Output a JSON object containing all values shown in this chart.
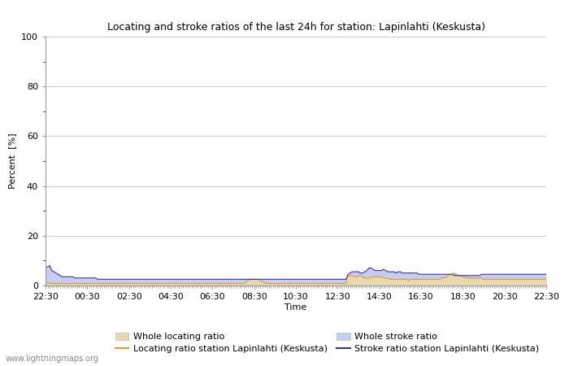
{
  "title": "Locating and stroke ratios of the last 24h for station: Lapinlahti (Keskusta)",
  "ylabel": "Percent  [%]",
  "xlabel": "Time",
  "ylim": [
    0,
    100
  ],
  "yticks": [
    0,
    20,
    40,
    60,
    80,
    100
  ],
  "ytick_minors": [
    10,
    30,
    50,
    70,
    90
  ],
  "x_labels": [
    "22:30",
    "00:30",
    "02:30",
    "04:30",
    "06:30",
    "08:30",
    "10:30",
    "12:30",
    "14:30",
    "16:30",
    "18:30",
    "20:30",
    "22:30"
  ],
  "watermark": "www.lightningmaps.org",
  "bg_color": "#ffffff",
  "plot_bg_color": "#ffffff",
  "grid_color": "#cccccc",
  "whole_locating_color": "#e8d8b0",
  "whole_stroke_color": "#c8ccee",
  "locating_line_color": "#d4a030",
  "stroke_line_color": "#3030b0",
  "whole_locating_data": [
    1.0,
    1.0,
    1.0,
    0.8,
    0.8,
    0.8,
    0.8,
    0.8,
    0.8,
    0.8,
    0.8,
    0.8,
    0.8,
    0.8,
    0.8,
    0.8,
    0.8,
    0.8,
    0.8,
    0.8,
    0.8,
    0.8,
    0.8,
    0.8,
    0.8,
    0.8,
    0.8,
    0.8,
    0.8,
    0.8,
    0.8,
    0.8,
    0.8,
    0.8,
    0.8,
    0.8,
    0.8,
    0.8,
    0.8,
    0.8,
    0.8,
    0.8,
    0.8,
    0.8,
    0.8,
    0.8,
    0.8,
    0.8,
    0.8,
    0.8,
    0.8,
    0.8,
    0.8,
    0.8,
    0.8,
    0.8,
    0.8,
    0.8,
    0.8,
    0.8,
    0.8,
    0.8,
    0.8,
    0.8,
    0.8,
    0.8,
    0.8,
    0.8,
    0.8,
    0.8,
    0.8,
    0.8,
    0.8,
    0.8,
    0.8,
    0.8,
    0.8,
    0.8,
    0.8,
    0.8,
    0.8,
    0.8,
    0.8,
    0.8,
    0.8,
    0.8,
    0.8,
    0.8,
    0.8,
    0.8,
    0.8,
    0.8,
    0.8,
    0.8,
    0.8,
    1.0,
    1.5,
    2.0,
    2.5,
    2.5,
    2.5,
    2.5,
    2.5,
    2.0,
    1.5,
    1.0,
    0.8,
    0.8,
    0.8,
    0.8,
    0.8,
    0.8,
    0.8,
    0.8,
    0.8,
    0.8,
    0.8,
    0.8,
    0.8,
    0.8,
    0.8,
    0.8,
    0.8,
    0.8,
    0.8,
    0.8,
    0.8,
    0.8,
    0.8,
    0.8,
    0.8,
    0.8,
    0.8,
    0.8,
    0.8,
    0.8,
    0.8,
    0.8,
    0.8,
    0.8,
    0.8,
    0.8,
    0.8,
    0.8,
    0.8,
    4.0,
    4.0,
    4.0,
    3.5,
    3.5,
    4.0,
    4.0,
    3.5,
    3.0,
    3.0,
    3.0,
    3.5,
    3.5,
    3.5,
    3.5,
    3.5,
    3.5,
    3.0,
    3.0,
    3.0,
    2.5,
    2.5,
    2.5,
    2.5,
    2.5,
    2.5,
    2.5,
    2.5,
    2.5,
    2.0,
    2.5,
    2.5,
    2.5,
    2.5,
    2.5,
    2.5,
    2.5,
    2.5,
    2.5,
    2.5,
    2.5,
    2.5,
    2.5,
    2.5,
    2.5,
    3.0,
    3.0,
    3.5,
    4.0,
    4.5,
    4.5,
    5.0,
    4.5,
    4.0,
    4.0,
    3.5,
    3.5,
    3.0,
    3.0,
    3.0,
    3.0,
    3.0,
    3.0,
    3.0,
    3.0,
    2.5,
    2.5,
    2.5,
    2.5,
    2.5,
    2.5,
    2.5,
    2.5,
    2.5,
    2.5,
    2.5,
    2.5,
    2.5,
    2.5,
    2.5,
    2.5,
    2.5,
    2.5,
    2.5,
    2.5,
    2.5,
    2.5,
    2.5,
    2.5,
    2.5,
    2.5,
    2.5,
    2.5,
    2.5,
    2.5,
    2.5
  ],
  "whole_stroke_data": [
    7.0,
    7.5,
    8.0,
    6.0,
    5.5,
    5.0,
    4.5,
    4.0,
    3.5,
    3.5,
    3.5,
    3.5,
    3.5,
    3.5,
    3.0,
    3.0,
    3.0,
    3.0,
    3.0,
    3.0,
    3.0,
    3.0,
    3.0,
    3.0,
    3.0,
    2.5,
    2.5,
    2.5,
    2.5,
    2.5,
    2.5,
    2.5,
    2.5,
    2.5,
    2.5,
    2.5,
    2.5,
    2.5,
    2.5,
    2.5,
    2.5,
    2.5,
    2.5,
    2.5,
    2.5,
    2.5,
    2.5,
    2.5,
    2.5,
    2.5,
    2.5,
    2.5,
    2.5,
    2.5,
    2.5,
    2.5,
    2.5,
    2.5,
    2.5,
    2.5,
    2.5,
    2.5,
    2.5,
    2.5,
    2.5,
    2.5,
    2.5,
    2.5,
    2.5,
    2.5,
    2.5,
    2.5,
    2.5,
    2.5,
    2.5,
    2.5,
    2.5,
    2.5,
    2.5,
    2.5,
    2.5,
    2.5,
    2.5,
    2.5,
    2.5,
    2.5,
    2.5,
    2.5,
    2.5,
    2.5,
    2.5,
    2.5,
    2.5,
    2.5,
    2.5,
    2.5,
    2.5,
    2.5,
    2.5,
    2.5,
    2.5,
    2.5,
    2.5,
    2.5,
    2.5,
    2.5,
    2.5,
    2.5,
    2.5,
    2.5,
    2.5,
    2.5,
    2.5,
    2.5,
    2.5,
    2.5,
    2.5,
    2.5,
    2.5,
    2.5,
    2.5,
    2.5,
    2.5,
    2.5,
    2.5,
    2.5,
    2.5,
    2.5,
    2.5,
    2.5,
    2.5,
    2.5,
    2.5,
    2.5,
    2.5,
    2.5,
    2.5,
    2.5,
    2.5,
    2.5,
    2.5,
    2.5,
    2.5,
    2.5,
    2.5,
    4.5,
    5.0,
    5.5,
    5.5,
    5.5,
    5.5,
    5.0,
    5.0,
    5.5,
    6.0,
    7.0,
    7.0,
    6.5,
    6.0,
    6.0,
    6.0,
    6.0,
    6.5,
    6.0,
    5.5,
    5.5,
    5.5,
    5.5,
    5.0,
    5.5,
    5.5,
    5.0,
    5.0,
    5.0,
    5.0,
    5.0,
    5.0,
    5.0,
    5.0,
    4.5,
    4.5,
    4.5,
    4.5,
    4.5,
    4.5,
    4.5,
    4.5,
    4.5,
    4.5,
    4.5,
    4.5,
    4.5,
    4.5,
    4.5,
    4.5,
    4.5,
    4.0,
    4.0,
    4.0,
    4.0,
    4.0,
    4.0,
    4.0,
    4.0,
    4.0,
    4.0,
    4.0,
    4.0,
    4.0,
    4.5,
    4.5,
    4.5,
    4.5,
    4.5,
    4.5,
    4.5,
    4.5,
    4.5,
    4.5,
    4.5,
    4.5,
    4.5,
    4.5,
    4.5,
    4.5,
    4.5,
    4.5,
    4.5,
    4.5,
    4.5,
    4.5,
    4.5,
    4.5,
    4.5,
    4.5,
    4.5,
    4.5,
    4.5,
    4.5,
    4.5,
    4.5
  ],
  "locating_line_data": [
    1.0,
    1.0,
    1.0,
    0.8,
    0.8,
    0.8,
    0.8,
    0.8,
    0.8,
    0.8,
    0.8,
    0.8,
    0.8,
    0.8,
    0.8,
    0.8,
    0.8,
    0.8,
    0.8,
    0.8,
    0.8,
    0.8,
    0.8,
    0.8,
    0.8,
    0.8,
    0.8,
    0.8,
    0.8,
    0.8,
    0.8,
    0.8,
    0.8,
    0.8,
    0.8,
    0.8,
    0.8,
    0.8,
    0.8,
    0.8,
    0.8,
    0.8,
    0.8,
    0.8,
    0.8,
    0.8,
    0.8,
    0.8,
    0.8,
    0.8,
    0.8,
    0.8,
    0.8,
    0.8,
    0.8,
    0.8,
    0.8,
    0.8,
    0.8,
    0.8,
    0.8,
    0.8,
    0.8,
    0.8,
    0.8,
    0.8,
    0.8,
    0.8,
    0.8,
    0.8,
    0.8,
    0.8,
    0.8,
    0.8,
    0.8,
    0.8,
    0.8,
    0.8,
    0.8,
    0.8,
    0.8,
    0.8,
    0.8,
    0.8,
    0.8,
    0.8,
    0.8,
    0.8,
    0.8,
    0.8,
    0.8,
    0.8,
    0.8,
    0.8,
    0.8,
    1.0,
    1.5,
    2.0,
    2.5,
    2.5,
    2.5,
    2.5,
    2.5,
    2.0,
    1.5,
    1.0,
    0.8,
    0.8,
    0.8,
    0.8,
    0.8,
    0.8,
    0.8,
    0.8,
    0.8,
    0.8,
    0.8,
    0.8,
    0.8,
    0.8,
    0.8,
    0.8,
    0.8,
    0.8,
    0.8,
    0.8,
    0.8,
    0.8,
    0.8,
    0.8,
    0.8,
    0.8,
    0.8,
    0.8,
    0.8,
    0.8,
    0.8,
    0.8,
    0.8,
    0.8,
    0.8,
    0.8,
    0.8,
    0.8,
    0.8,
    4.0,
    4.0,
    4.0,
    3.5,
    3.5,
    4.0,
    4.0,
    3.5,
    3.0,
    3.0,
    3.0,
    3.5,
    3.5,
    3.5,
    3.5,
    3.5,
    3.5,
    3.0,
    3.0,
    3.0,
    2.5,
    2.5,
    2.5,
    2.5,
    2.5,
    2.5,
    2.5,
    2.5,
    2.5,
    2.0,
    2.5,
    2.5,
    2.5,
    2.5,
    2.5,
    2.5,
    2.5,
    2.5,
    2.5,
    2.5,
    2.5,
    2.5,
    2.5,
    2.5,
    2.5,
    3.0,
    3.0,
    3.5,
    4.0,
    4.5,
    4.5,
    5.0,
    4.5,
    4.0,
    4.0,
    3.5,
    3.5,
    3.0,
    3.0,
    3.0,
    3.0,
    3.0,
    3.0,
    3.0,
    3.0,
    2.5,
    2.5,
    2.5,
    2.5,
    2.5,
    2.5,
    2.5,
    2.5,
    2.5,
    2.5,
    2.5,
    2.5,
    2.5,
    2.5,
    2.5,
    2.5,
    2.5,
    2.5,
    2.5,
    2.5,
    2.5,
    2.5,
    2.5,
    2.5,
    2.5,
    2.5,
    2.5,
    2.5,
    2.5,
    2.5,
    2.5
  ],
  "stroke_line_data": [
    7.0,
    7.5,
    8.0,
    6.0,
    5.5,
    5.0,
    4.5,
    4.0,
    3.5,
    3.5,
    3.5,
    3.5,
    3.5,
    3.5,
    3.0,
    3.0,
    3.0,
    3.0,
    3.0,
    3.0,
    3.0,
    3.0,
    3.0,
    3.0,
    3.0,
    2.5,
    2.5,
    2.5,
    2.5,
    2.5,
    2.5,
    2.5,
    2.5,
    2.5,
    2.5,
    2.5,
    2.5,
    2.5,
    2.5,
    2.5,
    2.5,
    2.5,
    2.5,
    2.5,
    2.5,
    2.5,
    2.5,
    2.5,
    2.5,
    2.5,
    2.5,
    2.5,
    2.5,
    2.5,
    2.5,
    2.5,
    2.5,
    2.5,
    2.5,
    2.5,
    2.5,
    2.5,
    2.5,
    2.5,
    2.5,
    2.5,
    2.5,
    2.5,
    2.5,
    2.5,
    2.5,
    2.5,
    2.5,
    2.5,
    2.5,
    2.5,
    2.5,
    2.5,
    2.5,
    2.5,
    2.5,
    2.5,
    2.5,
    2.5,
    2.5,
    2.5,
    2.5,
    2.5,
    2.5,
    2.5,
    2.5,
    2.5,
    2.5,
    2.5,
    2.5,
    2.5,
    2.5,
    2.5,
    2.5,
    2.5,
    2.5,
    2.5,
    2.5,
    2.5,
    2.5,
    2.5,
    2.5,
    2.5,
    2.5,
    2.5,
    2.5,
    2.5,
    2.5,
    2.5,
    2.5,
    2.5,
    2.5,
    2.5,
    2.5,
    2.5,
    2.5,
    2.5,
    2.5,
    2.5,
    2.5,
    2.5,
    2.5,
    2.5,
    2.5,
    2.5,
    2.5,
    2.5,
    2.5,
    2.5,
    2.5,
    2.5,
    2.5,
    2.5,
    2.5,
    2.5,
    2.5,
    2.5,
    2.5,
    2.5,
    2.5,
    4.5,
    5.0,
    5.5,
    5.5,
    5.5,
    5.5,
    5.0,
    5.0,
    5.5,
    6.0,
    7.0,
    7.0,
    6.5,
    6.0,
    6.0,
    6.0,
    6.0,
    6.5,
    6.0,
    5.5,
    5.5,
    5.5,
    5.5,
    5.0,
    5.5,
    5.5,
    5.0,
    5.0,
    5.0,
    5.0,
    5.0,
    5.0,
    5.0,
    5.0,
    4.5,
    4.5,
    4.5,
    4.5,
    4.5,
    4.5,
    4.5,
    4.5,
    4.5,
    4.5,
    4.5,
    4.5,
    4.5,
    4.5,
    4.5,
    4.5,
    4.5,
    4.0,
    4.0,
    4.0,
    4.0,
    4.0,
    4.0,
    4.0,
    4.0,
    4.0,
    4.0,
    4.0,
    4.0,
    4.0,
    4.5,
    4.5,
    4.5,
    4.5,
    4.5,
    4.5,
    4.5,
    4.5,
    4.5,
    4.5,
    4.5,
    4.5,
    4.5,
    4.5,
    4.5,
    4.5,
    4.5,
    4.5,
    4.5,
    4.5,
    4.5,
    4.5,
    4.5,
    4.5,
    4.5,
    4.5,
    4.5,
    4.5,
    4.5,
    4.5,
    4.5,
    4.5
  ]
}
